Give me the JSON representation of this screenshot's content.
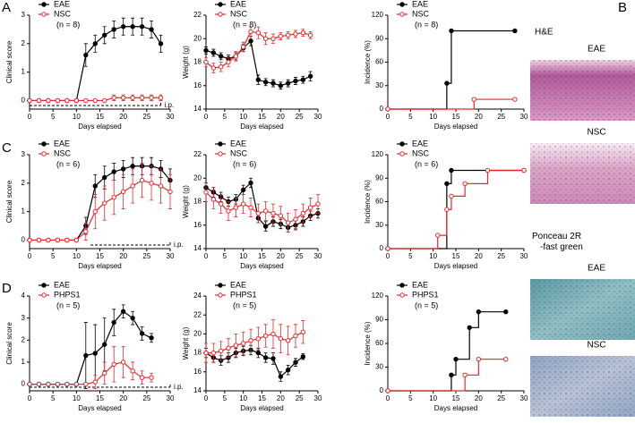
{
  "panel_labels": [
    "A",
    "B",
    "C",
    "D"
  ],
  "histology": {
    "groups": [
      {
        "stain": "H&E",
        "images": [
          "EAE",
          "NSC"
        ]
      },
      {
        "stain": "Ponceau 2R -fast green",
        "images": [
          "EAE",
          "NSC"
        ]
      }
    ]
  },
  "chart_data": [
    {
      "type": "line",
      "ylabel": "Clinical score",
      "xlabel": "Days elapsed",
      "note": "(n = 8)",
      "annotation": "i.p.",
      "treatment": [
        0,
        28
      ],
      "x": [
        0,
        2,
        4,
        6,
        8,
        10,
        12,
        14,
        16,
        18,
        20,
        22,
        24,
        26,
        28
      ],
      "xlim": [
        0,
        30
      ],
      "xticks": [
        0,
        5,
        10,
        15,
        20,
        25,
        30
      ],
      "ylim": [
        -0.3,
        3
      ],
      "yticks": [
        0,
        1,
        2,
        3
      ],
      "series": [
        {
          "name": "EAE",
          "color": "#000000",
          "marker": "filled",
          "values": [
            0,
            0,
            0,
            0,
            0,
            0,
            1.6,
            2.0,
            2.3,
            2.5,
            2.6,
            2.6,
            2.6,
            2.5,
            2.0
          ],
          "errors": [
            0,
            0,
            0,
            0,
            0,
            0,
            0.4,
            0.3,
            0.3,
            0.3,
            0.3,
            0.3,
            0.3,
            0.3,
            0.3
          ]
        },
        {
          "name": "NSC",
          "color": "#e8262b",
          "marker": "open",
          "values": [
            0,
            0,
            0,
            0,
            0,
            0,
            0,
            0,
            0,
            0.1,
            0.1,
            0.1,
            0.1,
            0.1,
            0.1
          ],
          "errors": [
            0,
            0,
            0,
            0,
            0,
            0,
            0,
            0,
            0,
            0.1,
            0.1,
            0.1,
            0.1,
            0.1,
            0.1
          ]
        }
      ]
    },
    {
      "type": "line",
      "ylabel": "Weight (g)",
      "xlabel": "Days elapsed",
      "note": "(n = 8)",
      "x": [
        0,
        2,
        4,
        6,
        8,
        10,
        12,
        14,
        16,
        18,
        20,
        22,
        24,
        26,
        28
      ],
      "xlim": [
        0,
        30
      ],
      "xticks": [
        0,
        5,
        10,
        15,
        20,
        25,
        30
      ],
      "ylim": [
        14,
        22
      ],
      "yticks": [
        14,
        16,
        18,
        20,
        22
      ],
      "series": [
        {
          "name": "EAE",
          "color": "#000000",
          "marker": "filled",
          "values": [
            19.0,
            18.8,
            18.5,
            18.3,
            18.5,
            19.2,
            19.8,
            16.5,
            16.3,
            16.2,
            16.0,
            16.2,
            16.4,
            16.5,
            16.8
          ],
          "errors": [
            0.3,
            0.3,
            0.3,
            0.3,
            0.3,
            0.3,
            0.4,
            0.4,
            0.3,
            0.3,
            0.3,
            0.3,
            0.3,
            0.3,
            0.4
          ]
        },
        {
          "name": "NSC",
          "color": "#e8262b",
          "marker": "open",
          "values": [
            18.0,
            17.5,
            17.6,
            18.0,
            18.5,
            19.3,
            20.6,
            20.5,
            20.0,
            20.0,
            20.2,
            20.3,
            20.4,
            20.5,
            20.3
          ],
          "errors": [
            0.4,
            0.4,
            0.4,
            0.4,
            0.4,
            0.4,
            0.4,
            0.5,
            0.5,
            0.4,
            0.3,
            0.3,
            0.3,
            0.3,
            0.3
          ]
        }
      ]
    },
    {
      "type": "step",
      "ylabel": "Incidence (%)",
      "xlabel": "Days elapsed",
      "note": "(n = 8)",
      "xlim": [
        0,
        30
      ],
      "xticks": [
        0,
        5,
        10,
        15,
        20,
        25,
        30
      ],
      "ylim": [
        0,
        120
      ],
      "yticks": [
        0,
        30,
        60,
        90,
        120
      ],
      "series": [
        {
          "name": "EAE",
          "color": "#000000",
          "marker": "filled",
          "x": [
            0,
            13,
            14,
            28
          ],
          "values": [
            0,
            33,
            100,
            100
          ]
        },
        {
          "name": "NSC",
          "color": "#e8262b",
          "marker": "open",
          "x": [
            0,
            19,
            28
          ],
          "values": [
            0,
            12.5,
            12.5
          ]
        }
      ]
    },
    {
      "type": "line",
      "ylabel": "Clinical score",
      "xlabel": "Days elapsed",
      "note": "(n = 6)",
      "annotation": "i.p.",
      "treatment": [
        13,
        30
      ],
      "x": [
        0,
        2,
        4,
        6,
        8,
        10,
        12,
        14,
        16,
        18,
        20,
        22,
        24,
        26,
        28,
        30
      ],
      "xlim": [
        0,
        30
      ],
      "xticks": [
        0,
        5,
        10,
        15,
        20,
        25,
        30
      ],
      "ylim": [
        -0.3,
        3
      ],
      "yticks": [
        0,
        1,
        2,
        3
      ],
      "series": [
        {
          "name": "EAE",
          "color": "#000000",
          "marker": "filled",
          "values": [
            0,
            0,
            0,
            0,
            0,
            0,
            0.5,
            1.9,
            2.2,
            2.4,
            2.5,
            2.6,
            2.6,
            2.6,
            2.5,
            2.1
          ],
          "errors": [
            0,
            0,
            0,
            0,
            0,
            0,
            0.3,
            0.4,
            0.4,
            0.3,
            0.3,
            0.3,
            0.3,
            0.3,
            0.3,
            0.4
          ]
        },
        {
          "name": "NSC",
          "color": "#e8262b",
          "marker": "open",
          "values": [
            0,
            0,
            0,
            0,
            0,
            0,
            0.3,
            1.0,
            1.3,
            1.5,
            1.7,
            1.9,
            2.1,
            2.0,
            1.9,
            1.7
          ],
          "errors": [
            0,
            0,
            0,
            0,
            0,
            0,
            0.3,
            0.6,
            0.6,
            0.6,
            0.6,
            0.6,
            0.6,
            0.6,
            0.6,
            0.6
          ]
        }
      ]
    },
    {
      "type": "line",
      "ylabel": "Weight (g)",
      "xlabel": "Days elapsed",
      "note": "(n = 6)",
      "x": [
        0,
        2,
        4,
        6,
        8,
        10,
        12,
        14,
        16,
        18,
        20,
        22,
        24,
        26,
        28,
        30
      ],
      "xlim": [
        0,
        30
      ],
      "xticks": [
        0,
        5,
        10,
        15,
        20,
        25,
        30
      ],
      "ylim": [
        14,
        22
      ],
      "yticks": [
        14,
        16,
        18,
        20,
        22
      ],
      "series": [
        {
          "name": "EAE",
          "color": "#000000",
          "marker": "filled",
          "values": [
            19.2,
            18.8,
            18.4,
            18.0,
            18.2,
            19.0,
            19.6,
            16.6,
            15.9,
            16.3,
            16.1,
            15.8,
            16.0,
            16.3,
            16.8,
            17.0
          ],
          "errors": [
            0.4,
            0.4,
            0.4,
            0.4,
            0.4,
            0.4,
            0.4,
            0.4,
            0.4,
            0.4,
            0.4,
            0.4,
            0.4,
            0.4,
            0.4,
            0.4
          ]
        },
        {
          "name": "NSC",
          "color": "#e8262b",
          "marker": "open",
          "values": [
            18.8,
            18.2,
            17.8,
            17.2,
            17.5,
            17.8,
            17.5,
            17.0,
            17.2,
            17.0,
            16.8,
            16.2,
            16.5,
            17.0,
            17.5,
            17.8
          ],
          "errors": [
            0.8,
            0.8,
            0.8,
            0.8,
            0.8,
            0.8,
            0.8,
            0.8,
            0.8,
            0.8,
            0.8,
            0.8,
            0.8,
            0.8,
            0.8,
            0.8
          ]
        }
      ]
    },
    {
      "type": "step",
      "ylabel": "Incidence (%)",
      "xlabel": "Days elapsed",
      "note": "(n = 6)",
      "xlim": [
        0,
        30
      ],
      "xticks": [
        0,
        5,
        10,
        15,
        20,
        25,
        30
      ],
      "ylim": [
        0,
        120
      ],
      "yticks": [
        0,
        30,
        60,
        90,
        120
      ],
      "series": [
        {
          "name": "EAE",
          "color": "#000000",
          "marker": "filled",
          "x": [
            0,
            13,
            14,
            30
          ],
          "values": [
            0,
            83,
            100,
            100
          ]
        },
        {
          "name": "NSC",
          "color": "#e8262b",
          "marker": "open",
          "x": [
            0,
            11,
            13,
            14,
            17,
            22,
            30
          ],
          "values": [
            0,
            17,
            50,
            67,
            83,
            100,
            100
          ]
        }
      ]
    },
    {
      "type": "line",
      "ylabel": "Clinical score",
      "xlabel": "Days elapsed",
      "note": "(n = 5)",
      "annotation": "i.p.",
      "treatment": [
        0,
        30
      ],
      "x": [
        0,
        2,
        4,
        6,
        8,
        10,
        12,
        14,
        16,
        18,
        20,
        22,
        24,
        26
      ],
      "xlim": [
        0,
        30
      ],
      "xticks": [
        0,
        5,
        10,
        15,
        20,
        25,
        30
      ],
      "ylim": [
        -0.3,
        4
      ],
      "yticks": [
        0,
        1,
        2,
        3,
        4
      ],
      "series": [
        {
          "name": "EAE",
          "color": "#000000",
          "marker": "filled",
          "values": [
            0,
            0,
            0,
            0,
            0,
            0,
            1.3,
            1.4,
            1.8,
            2.8,
            3.3,
            3.0,
            2.3,
            2.1
          ],
          "errors": [
            0,
            0,
            0,
            0,
            0,
            0,
            1.5,
            1.3,
            1.2,
            0.6,
            0.3,
            0.3,
            0.3,
            0.2
          ]
        },
        {
          "name": "PHPS1",
          "color": "#e8262b",
          "marker": "open",
          "values": [
            0,
            0,
            0,
            0,
            0,
            0,
            0,
            0.1,
            0.5,
            0.9,
            1.0,
            0.6,
            0.3,
            0.3
          ],
          "errors": [
            0,
            0,
            0,
            0,
            0,
            0,
            0,
            0.3,
            0.5,
            0.8,
            0.7,
            0.4,
            0.3,
            0.2
          ]
        }
      ]
    },
    {
      "type": "line",
      "ylabel": "Weight (g)",
      "xlabel": "Days elapsed",
      "note": "(n = 5)",
      "x": [
        0,
        2,
        4,
        6,
        8,
        10,
        12,
        14,
        16,
        18,
        20,
        22,
        24,
        26
      ],
      "xlim": [
        0,
        30
      ],
      "xticks": [
        0,
        5,
        10,
        15,
        20,
        25,
        30
      ],
      "ylim": [
        14,
        24
      ],
      "yticks": [
        14,
        16,
        18,
        20,
        22,
        24
      ],
      "series": [
        {
          "name": "EAE",
          "color": "#000000",
          "marker": "filled",
          "values": [
            18.0,
            17.5,
            17.2,
            17.5,
            18.0,
            18.2,
            18.3,
            18.0,
            17.5,
            17.4,
            15.5,
            16.2,
            17.0,
            17.6
          ],
          "errors": [
            0.5,
            0.5,
            0.5,
            0.5,
            0.5,
            0.5,
            0.5,
            0.5,
            0.5,
            0.6,
            0.5,
            0.5,
            0.4,
            0.3
          ]
        },
        {
          "name": "PHPS1",
          "color": "#e8262b",
          "marker": "open",
          "values": [
            18.0,
            18.0,
            18.2,
            18.5,
            18.8,
            19.0,
            19.3,
            19.5,
            19.8,
            20.0,
            19.5,
            19.3,
            19.8,
            20.2
          ],
          "errors": [
            1.0,
            1.0,
            1.0,
            1.0,
            1.2,
            1.2,
            1.2,
            1.2,
            1.2,
            1.5,
            1.5,
            1.5,
            1.2,
            1.2
          ]
        }
      ]
    },
    {
      "type": "step",
      "ylabel": "Incidence (%)",
      "xlabel": "Days elapsed",
      "note": "(n = 5)",
      "xlim": [
        0,
        30
      ],
      "xticks": [
        0,
        5,
        10,
        15,
        20,
        25,
        30
      ],
      "ylim": [
        0,
        120
      ],
      "yticks": [
        0,
        30,
        60,
        90,
        120
      ],
      "series": [
        {
          "name": "EAE",
          "color": "#000000",
          "marker": "filled",
          "x": [
            0,
            14,
            15,
            18,
            20,
            26
          ],
          "values": [
            0,
            20,
            40,
            80,
            100,
            100
          ]
        },
        {
          "name": "PHPS1",
          "color": "#e8262b",
          "marker": "open",
          "x": [
            0,
            17,
            20,
            26
          ],
          "values": [
            0,
            20,
            40,
            40
          ]
        }
      ]
    }
  ]
}
